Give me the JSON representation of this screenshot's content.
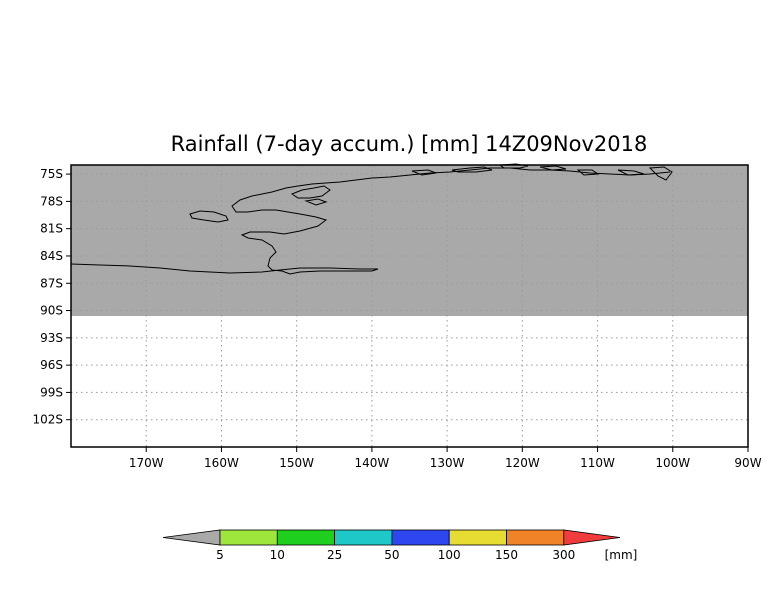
{
  "title": "Rainfall (7-day accum.) [mm] 14Z09Nov2018",
  "map": {
    "lon_range": [
      -180,
      -90
    ],
    "lat_range": [
      -105,
      -74
    ],
    "data_lat_min": -90,
    "grid": true,
    "no_data_color": "#a9a9a9",
    "x_tick_labels": [
      "170W",
      "160W",
      "150W",
      "140W",
      "130W",
      "120W",
      "110W",
      "100W",
      "90W"
    ],
    "y_tick_labels": [
      "75S",
      "78S",
      "81S",
      "84S",
      "87S",
      "90S",
      "93S",
      "96S",
      "99S",
      "102S"
    ]
  },
  "colorbar": {
    "levels": [
      "5",
      "10",
      "25",
      "50",
      "100",
      "150",
      "300"
    ],
    "colors": [
      "#a9a9a9",
      "#9ee63c",
      "#1ecf1e",
      "#1ec8c8",
      "#2d46f0",
      "#e6dc32",
      "#f08228",
      "#f03c3c"
    ],
    "unit_label": "[mm]"
  }
}
